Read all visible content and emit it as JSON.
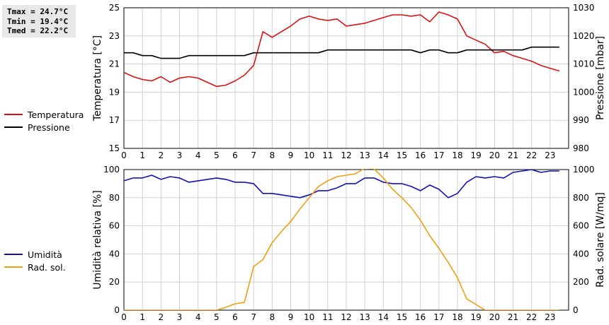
{
  "stats": {
    "tmax": "Tmax = 24.7°C",
    "tmin": "Tmin = 19.4°C",
    "tmed": "Tmed = 22.2°C"
  },
  "legend_top": [
    {
      "label": "Temperatura",
      "color": "#dd1111"
    },
    {
      "label": "Pressione",
      "color": "#000000"
    }
  ],
  "legend_bottom": [
    {
      "label": "Umidità",
      "color": "#1111bb"
    },
    {
      "label": "Rad. sol.",
      "color": "#f0a010"
    }
  ],
  "chart_data": [
    {
      "type": "line",
      "xlim": [
        0,
        24
      ],
      "xticks": [
        "0",
        "1",
        "2",
        "3",
        "4",
        "5",
        "6",
        "7",
        "8",
        "9",
        "10",
        "11",
        "12",
        "13",
        "14",
        "15",
        "16",
        "17",
        "18",
        "19",
        "20",
        "21",
        "22",
        "23"
      ],
      "ylabel_left": "Temperatura [°C]",
      "ylim_left": [
        15,
        25
      ],
      "yticks_left": [
        15,
        17,
        19,
        21,
        23,
        25
      ],
      "ylabel_right": "Pressione [mbar]",
      "ylim_right": [
        980,
        1030
      ],
      "yticks_right": [
        980,
        990,
        1000,
        1010,
        1020,
        1030
      ],
      "grid": true,
      "series": [
        {
          "name": "Temperatura",
          "axis": "left",
          "color": "#dd1111",
          "points": [
            [
              0,
              20.4
            ],
            [
              0.5,
              20.1
            ],
            [
              1,
              19.9
            ],
            [
              1.5,
              19.8
            ],
            [
              2,
              20.1
            ],
            [
              2.5,
              19.7
            ],
            [
              3,
              20.0
            ],
            [
              3.5,
              20.1
            ],
            [
              4,
              20.0
            ],
            [
              4.5,
              19.7
            ],
            [
              5,
              19.4
            ],
            [
              5.5,
              19.5
            ],
            [
              6,
              19.8
            ],
            [
              6.5,
              20.2
            ],
            [
              7,
              20.9
            ],
            [
              7.5,
              23.3
            ],
            [
              8,
              22.9
            ],
            [
              8.5,
              23.3
            ],
            [
              9,
              23.7
            ],
            [
              9.5,
              24.2
            ],
            [
              10,
              24.4
            ],
            [
              10.5,
              24.2
            ],
            [
              11,
              24.1
            ],
            [
              11.5,
              24.2
            ],
            [
              12,
              23.7
            ],
            [
              12.5,
              23.8
            ],
            [
              13,
              23.9
            ],
            [
              13.5,
              24.1
            ],
            [
              14,
              24.3
            ],
            [
              14.5,
              24.5
            ],
            [
              15,
              24.5
            ],
            [
              15.5,
              24.4
            ],
            [
              16,
              24.5
            ],
            [
              16.5,
              24.0
            ],
            [
              17,
              24.7
            ],
            [
              17.5,
              24.5
            ],
            [
              18,
              24.2
            ],
            [
              18.5,
              23.0
            ],
            [
              19,
              22.7
            ],
            [
              19.5,
              22.4
            ],
            [
              20,
              21.8
            ],
            [
              20.5,
              21.9
            ],
            [
              21,
              21.6
            ],
            [
              21.5,
              21.4
            ],
            [
              22,
              21.2
            ],
            [
              22.5,
              20.9
            ],
            [
              23,
              20.7
            ],
            [
              23.5,
              20.5
            ]
          ]
        },
        {
          "name": "Pressione",
          "axis": "right",
          "color": "#000000",
          "points": [
            [
              0,
              1014
            ],
            [
              0.5,
              1014
            ],
            [
              1,
              1013
            ],
            [
              1.5,
              1013
            ],
            [
              2,
              1012
            ],
            [
              2.5,
              1012
            ],
            [
              3,
              1012
            ],
            [
              3.5,
              1013
            ],
            [
              4,
              1013
            ],
            [
              4.5,
              1013
            ],
            [
              5,
              1013
            ],
            [
              5.5,
              1013
            ],
            [
              6,
              1013
            ],
            [
              6.5,
              1013
            ],
            [
              7,
              1014
            ],
            [
              7.5,
              1014
            ],
            [
              8,
              1014
            ],
            [
              8.5,
              1014
            ],
            [
              9,
              1014
            ],
            [
              9.5,
              1014
            ],
            [
              10,
              1014
            ],
            [
              10.5,
              1014
            ],
            [
              11,
              1015
            ],
            [
              11.5,
              1015
            ],
            [
              12,
              1015
            ],
            [
              12.5,
              1015
            ],
            [
              13,
              1015
            ],
            [
              13.5,
              1015
            ],
            [
              14,
              1015
            ],
            [
              14.5,
              1015
            ],
            [
              15,
              1015
            ],
            [
              15.5,
              1015
            ],
            [
              16,
              1014
            ],
            [
              16.5,
              1015
            ],
            [
              17,
              1015
            ],
            [
              17.5,
              1014
            ],
            [
              18,
              1014
            ],
            [
              18.5,
              1015
            ],
            [
              19,
              1015
            ],
            [
              19.5,
              1015
            ],
            [
              20,
              1015
            ],
            [
              20.5,
              1015
            ],
            [
              21,
              1015
            ],
            [
              21.5,
              1015
            ],
            [
              22,
              1016
            ],
            [
              22.5,
              1016
            ],
            [
              23,
              1016
            ],
            [
              23.5,
              1016
            ]
          ]
        }
      ]
    },
    {
      "type": "line",
      "xlim": [
        0,
        24
      ],
      "xticks": [
        "0",
        "1",
        "2",
        "3",
        "4",
        "5",
        "6",
        "7",
        "8",
        "9",
        "10",
        "11",
        "12",
        "13",
        "14",
        "15",
        "16",
        "17",
        "18",
        "19",
        "20",
        "21",
        "22",
        "23"
      ],
      "ylabel_left": "Umidità relativa [%]",
      "ylim_left": [
        0,
        100
      ],
      "yticks_left": [
        0,
        20,
        40,
        60,
        80,
        100
      ],
      "ylabel_right": "Rad. solare [W/mq]",
      "ylim_right": [
        0,
        1000
      ],
      "yticks_right": [
        0,
        200,
        400,
        600,
        800,
        1000
      ],
      "grid": true,
      "series": [
        {
          "name": "Umidità",
          "axis": "left",
          "color": "#1111bb",
          "points": [
            [
              0,
              92
            ],
            [
              0.5,
              94
            ],
            [
              1,
              94
            ],
            [
              1.5,
              96
            ],
            [
              2,
              93
            ],
            [
              2.5,
              95
            ],
            [
              3,
              94
            ],
            [
              3.5,
              91
            ],
            [
              4,
              92
            ],
            [
              4.5,
              93
            ],
            [
              5,
              94
            ],
            [
              5.5,
              93
            ],
            [
              6,
              91
            ],
            [
              6.5,
              91
            ],
            [
              7,
              90
            ],
            [
              7.5,
              83
            ],
            [
              8,
              83
            ],
            [
              8.5,
              82
            ],
            [
              9,
              81
            ],
            [
              9.5,
              80
            ],
            [
              10,
              82
            ],
            [
              10.5,
              85
            ],
            [
              11,
              85
            ],
            [
              11.5,
              87
            ],
            [
              12,
              90
            ],
            [
              12.5,
              90
            ],
            [
              13,
              94
            ],
            [
              13.5,
              94
            ],
            [
              14,
              91
            ],
            [
              14.5,
              90
            ],
            [
              15,
              90
            ],
            [
              15.5,
              88
            ],
            [
              16,
              85
            ],
            [
              16.5,
              89
            ],
            [
              17,
              86
            ],
            [
              17.5,
              80
            ],
            [
              18,
              83
            ],
            [
              18.5,
              91
            ],
            [
              19,
              95
            ],
            [
              19.5,
              94
            ],
            [
              20,
              95
            ],
            [
              20.5,
              94
            ],
            [
              21,
              98
            ],
            [
              21.5,
              99
            ],
            [
              22,
              100
            ],
            [
              22.5,
              98
            ],
            [
              23,
              99
            ],
            [
              23.5,
              99
            ]
          ]
        },
        {
          "name": "Rad. sol.",
          "axis": "right",
          "color": "#f0a010",
          "points": [
            [
              0,
              0
            ],
            [
              0.5,
              0
            ],
            [
              1,
              0
            ],
            [
              1.5,
              0
            ],
            [
              2,
              0
            ],
            [
              2.5,
              0
            ],
            [
              3,
              0
            ],
            [
              3.5,
              0
            ],
            [
              4,
              0
            ],
            [
              4.5,
              0
            ],
            [
              5,
              0
            ],
            [
              5.5,
              20
            ],
            [
              6,
              45
            ],
            [
              6.5,
              55
            ],
            [
              7,
              310
            ],
            [
              7.5,
              360
            ],
            [
              8,
              480
            ],
            [
              8.5,
              560
            ],
            [
              9,
              630
            ],
            [
              9.5,
              720
            ],
            [
              10,
              800
            ],
            [
              10.5,
              880
            ],
            [
              11,
              920
            ],
            [
              11.5,
              950
            ],
            [
              12,
              960
            ],
            [
              12.5,
              970
            ],
            [
              13,
              1010
            ],
            [
              13.5,
              1005
            ],
            [
              14,
              940
            ],
            [
              14.5,
              860
            ],
            [
              15,
              800
            ],
            [
              15.5,
              730
            ],
            [
              16,
              640
            ],
            [
              16.5,
              530
            ],
            [
              17,
              440
            ],
            [
              17.5,
              340
            ],
            [
              18,
              230
            ],
            [
              18.5,
              80
            ],
            [
              19,
              40
            ],
            [
              19.5,
              0
            ],
            [
              20,
              0
            ],
            [
              20.5,
              0
            ],
            [
              21,
              0
            ],
            [
              21.5,
              0
            ],
            [
              22,
              0
            ],
            [
              22.5,
              0
            ],
            [
              23,
              0
            ],
            [
              23.5,
              0
            ]
          ]
        }
      ]
    }
  ]
}
